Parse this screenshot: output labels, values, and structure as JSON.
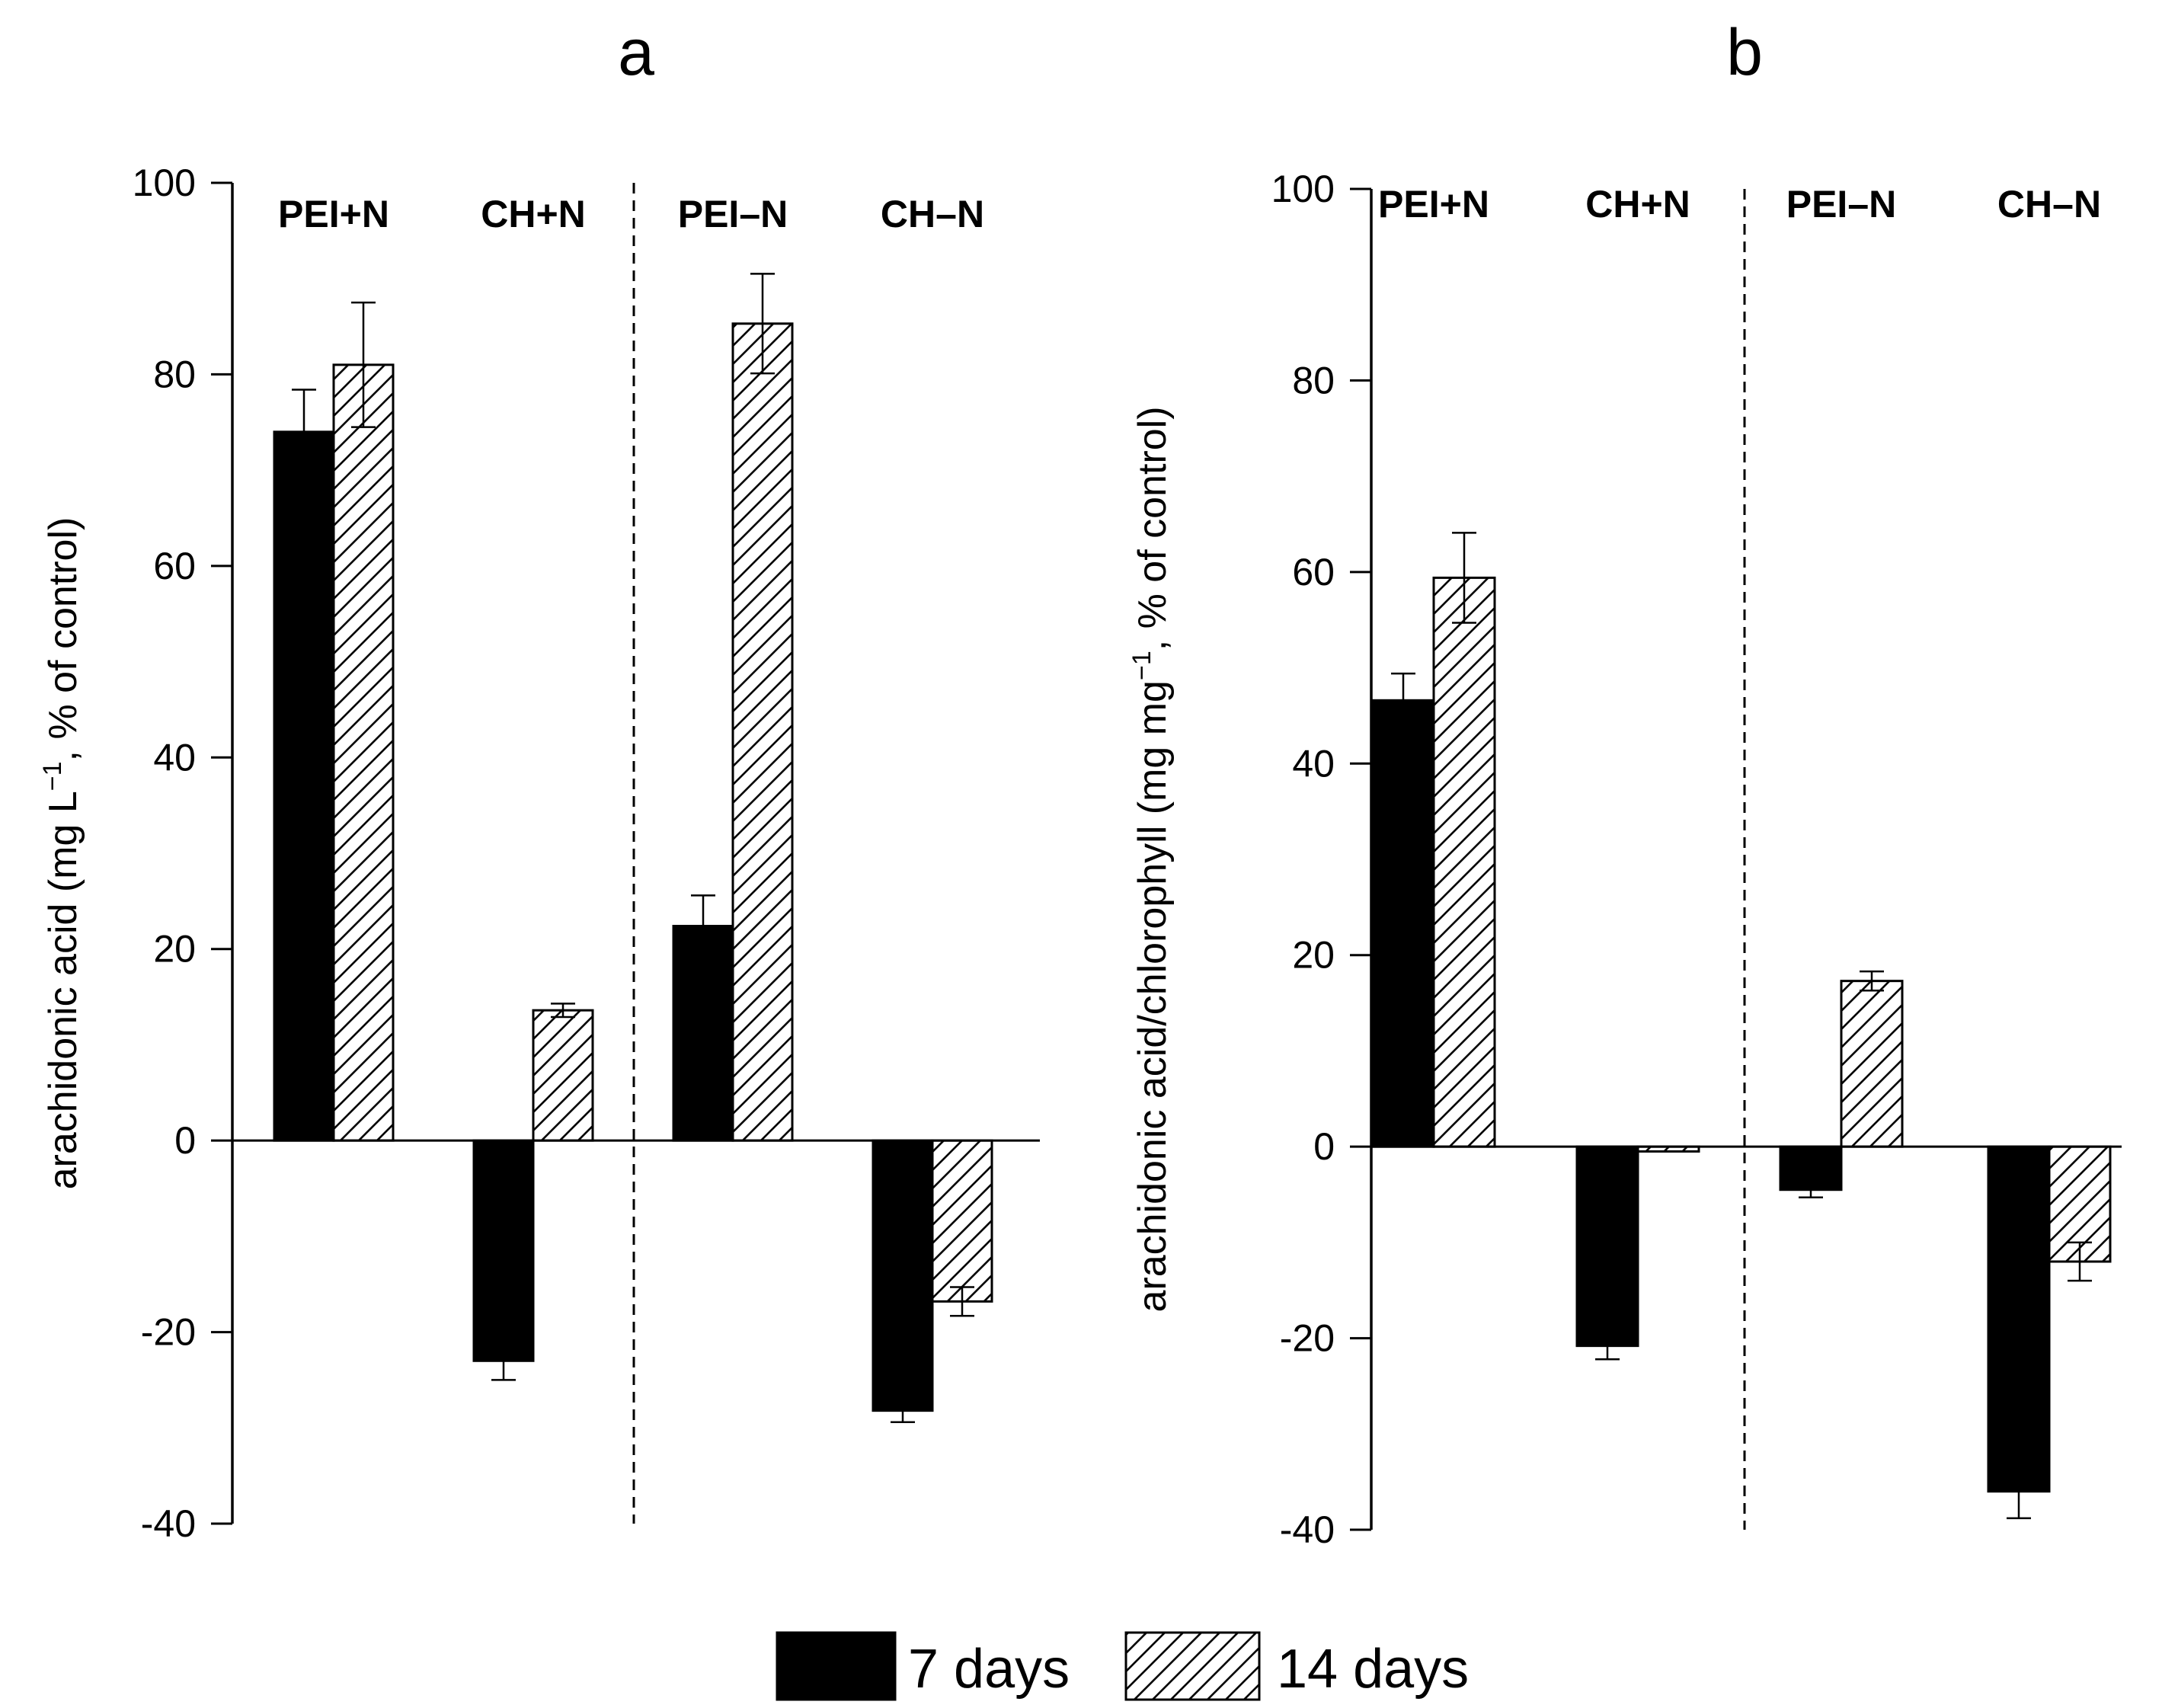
{
  "chart_data": [
    {
      "panel": "a",
      "type": "bar",
      "ylabel_main": "arachidonic acid (mg L",
      "ylabel_sup": "−1",
      "ylabel_tail": ",  % of control)",
      "ylim": [
        -40,
        100
      ],
      "yticks": [
        -40,
        -20,
        0,
        20,
        40,
        60,
        80,
        100
      ],
      "yticks_text": [
        "-40",
        "-20",
        "0",
        "20",
        "40",
        "60",
        "80",
        "100"
      ],
      "categories": [
        "PEI+N",
        "CH+N",
        "PEI–N",
        "CH–N"
      ],
      "divider_after_index": 1,
      "series": [
        {
          "name": "7 days",
          "values": [
            74,
            -23,
            22.4,
            -28.2
          ],
          "errors": [
            4.4,
            2.0,
            3.2,
            1.2
          ]
        },
        {
          "name": "14 days",
          "values": [
            81,
            13.6,
            85.3,
            -16.8
          ],
          "errors": [
            6.5,
            0.7,
            5.2,
            1.5
          ]
        }
      ]
    },
    {
      "panel": "b",
      "type": "bar",
      "ylabel_main": "arachidonic acid/chlorophyll (mg mg",
      "ylabel_sup": "−1",
      "ylabel_tail": ",  % of control)",
      "ylim": [
        -40,
        100
      ],
      "yticks": [
        -40,
        -20,
        0,
        20,
        40,
        60,
        80,
        100
      ],
      "yticks_text": [
        "-40",
        "-20",
        "0",
        "20",
        "40",
        "60",
        "80",
        "100"
      ],
      "categories": [
        "PEI+N",
        "CH+N",
        "PEI–N",
        "CH–N"
      ],
      "divider_after_index": 1,
      "series": [
        {
          "name": "7 days",
          "values": [
            46.6,
            -20.8,
            -4.5,
            -36
          ],
          "errors": [
            2.8,
            1.4,
            0.8,
            2.8
          ]
        },
        {
          "name": "14 days",
          "values": [
            59.4,
            -0.5,
            17.3,
            -12
          ],
          "errors": [
            4.7,
            0,
            1.0,
            2.0
          ]
        }
      ]
    }
  ],
  "legend": {
    "items": [
      {
        "label": "7 days",
        "fill": "solid"
      },
      {
        "label": "14 days",
        "fill": "hatched"
      }
    ]
  },
  "colors": {
    "bar_solid": "#000000",
    "bar_hatch_stroke": "#000000",
    "background": "#ffffff"
  }
}
